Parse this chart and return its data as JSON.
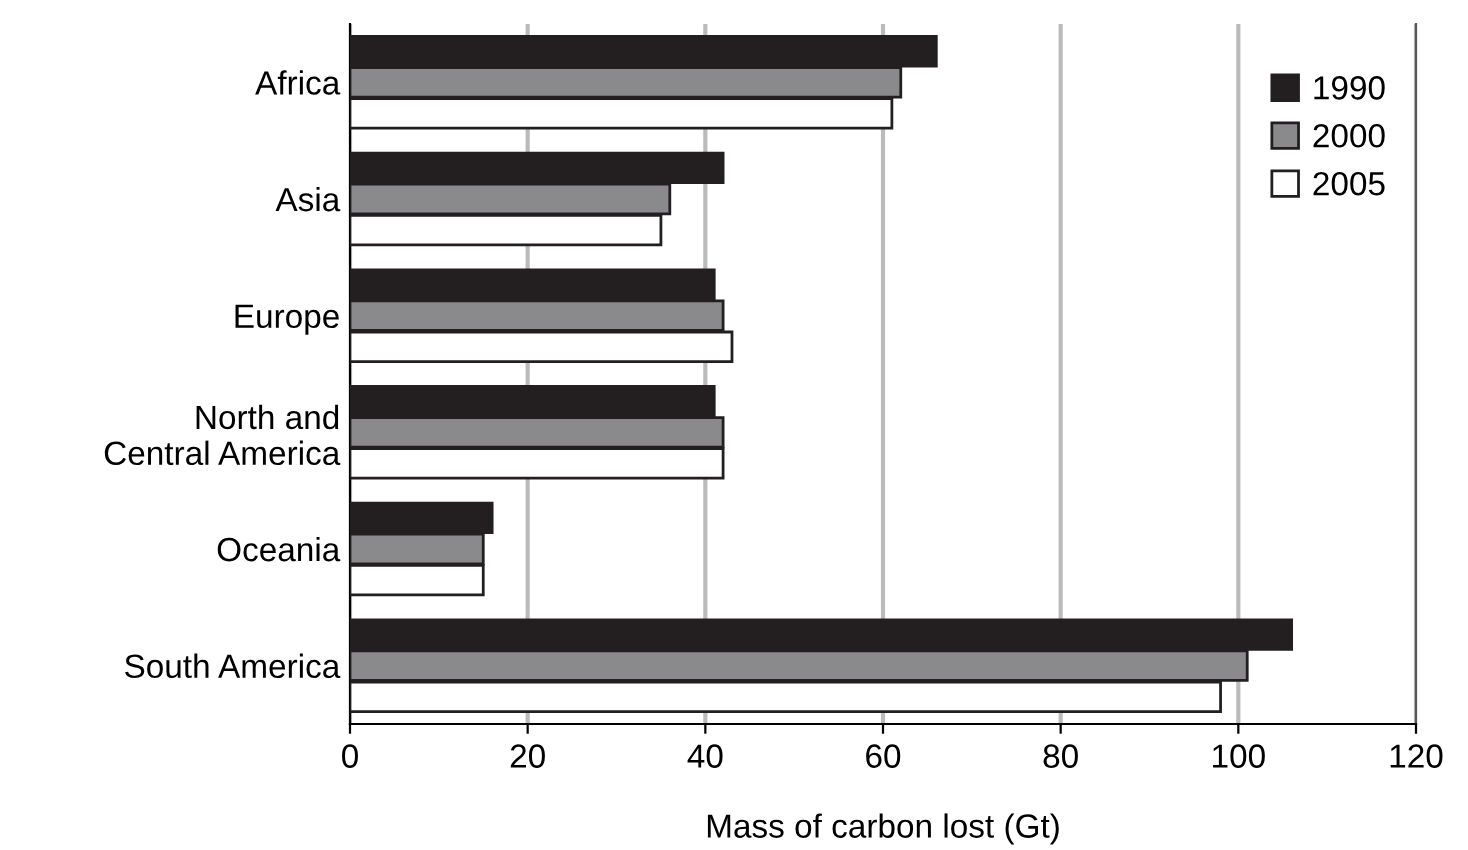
{
  "chart_data": {
    "type": "bar",
    "orientation": "horizontal",
    "xlabel": "Mass of carbon lost (Gt)",
    "categories": [
      "Africa",
      "Asia",
      "Europe",
      "North and\nCentral America",
      "Oceania",
      "South America"
    ],
    "series": [
      {
        "name": "1990",
        "color": "#231f20",
        "values": [
          66,
          42,
          41,
          41,
          16,
          106
        ]
      },
      {
        "name": "2000",
        "color": "#8a8a8c",
        "values": [
          62,
          36,
          42,
          42,
          15,
          101
        ]
      },
      {
        "name": "2005",
        "color": "#ffffff",
        "values": [
          61,
          35,
          43,
          42,
          15,
          98
        ]
      }
    ],
    "xlim": [
      0,
      120
    ],
    "xticks": [
      0,
      20,
      40,
      60,
      80,
      100,
      120
    ],
    "grid": "x",
    "legend": "top right"
  }
}
